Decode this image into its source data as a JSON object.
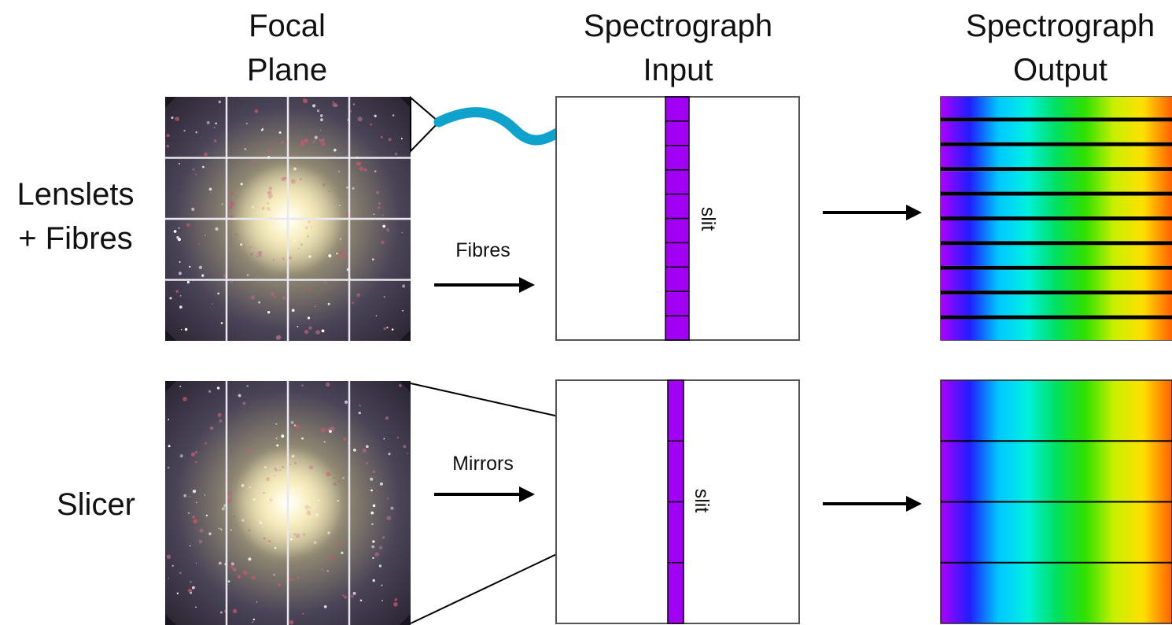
{
  "columns": {
    "focal_plane": [
      "Focal",
      "Plane"
    ],
    "spectrograph_input": [
      "Spectrograph",
      "Input"
    ],
    "spectrograph_output": [
      "Spectrograph",
      "Output"
    ]
  },
  "rows": {
    "lenslets": {
      "label": [
        "Lenslets",
        "+ Fibres"
      ],
      "arrow_label": "Fibres",
      "slit_label": "slit",
      "slit_segments": 10,
      "output_stripes": 9
    },
    "slicer": {
      "label": [
        "Slicer"
      ],
      "arrow_label": "Mirrors",
      "slit_label": "slit",
      "slit_segments": 4,
      "output_stripes": 4
    }
  },
  "focal_plane_grid": {
    "cols": 4,
    "rows": 4
  },
  "colors": {
    "fibre": "#0ea2cc",
    "slit": "#a200f5",
    "grid_line": "#e8e8ee",
    "spectrum": [
      "#b000ff",
      "#1e1eff",
      "#00c8ff",
      "#00f0e0",
      "#00e060",
      "#30e000",
      "#c8f000",
      "#ffe000",
      "#ff6000"
    ]
  }
}
